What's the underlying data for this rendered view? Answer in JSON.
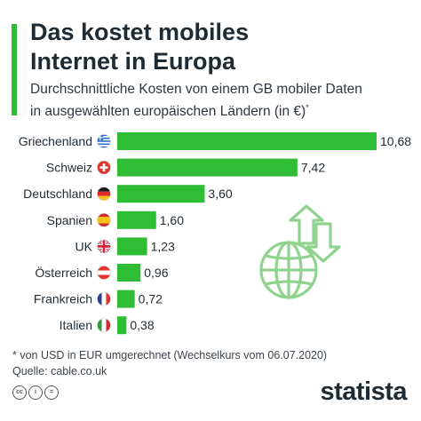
{
  "header": {
    "title_line1": "Das kostet mobiles",
    "title_line2": "Internet in Europa",
    "subtitle_line1": "Durchschnittliche Kosten von einem GB mobiler Daten",
    "subtitle_line2": "in ausgewählten europäischen Ländern (in €)",
    "subtitle_mark": "*"
  },
  "chart_data": {
    "type": "bar",
    "orientation": "horizontal",
    "categories": [
      "Griechenland",
      "Schweiz",
      "Deutschland",
      "Spanien",
      "UK",
      "Österreich",
      "Frankreich",
      "Italien"
    ],
    "values": [
      10.68,
      7.42,
      3.6,
      1.6,
      1.23,
      0.96,
      0.72,
      0.38
    ],
    "value_labels": [
      "10,68",
      "7,42",
      "3,60",
      "1,60",
      "1,23",
      "0,96",
      "0,72",
      "0,38"
    ],
    "flags": [
      "flag-greece-icon",
      "flag-switzerland-icon",
      "flag-germany-icon",
      "flag-spain-icon",
      "flag-uk-icon",
      "flag-austria-icon",
      "flag-france-icon",
      "flag-italy-icon"
    ],
    "bar_color": "#2ebd34",
    "xlim": [
      0,
      10.68
    ],
    "grid": false,
    "legend": "none"
  },
  "footer": {
    "note": "* von USD in EUR umgerechnet (Wechselkurs vom 06.07.2020)",
    "source": "Quelle: cable.co.uk",
    "brand": "statista",
    "cc_icons": [
      "cc",
      "i",
      "="
    ]
  },
  "colors": {
    "accent": "#2ebd34",
    "text": "#1f2a33",
    "illustration": "#8fd38f"
  }
}
